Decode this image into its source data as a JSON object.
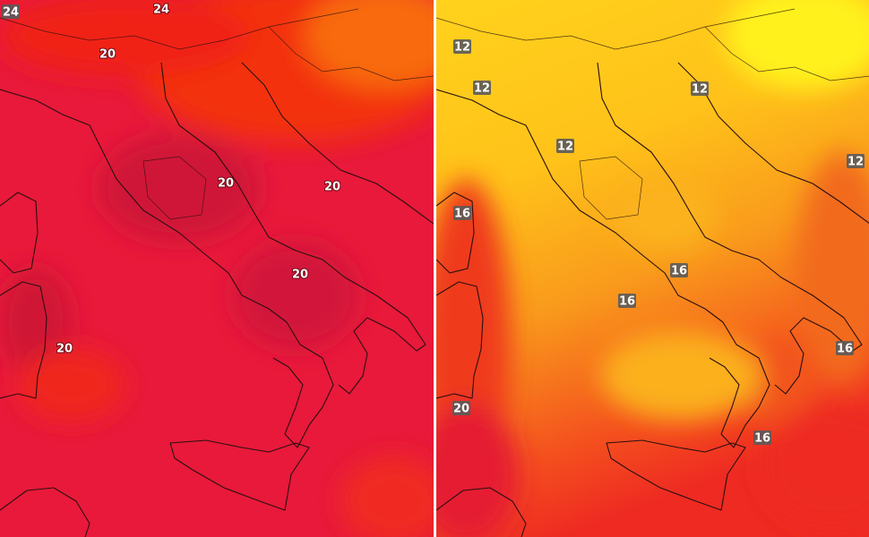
{
  "maps": [
    {
      "labels": [
        24,
        24,
        20,
        20,
        20,
        20,
        20
      ]
    },
    {
      "labels": [
        12,
        12,
        12,
        12,
        12,
        16,
        16,
        16,
        16,
        16,
        20
      ]
    }
  ]
}
